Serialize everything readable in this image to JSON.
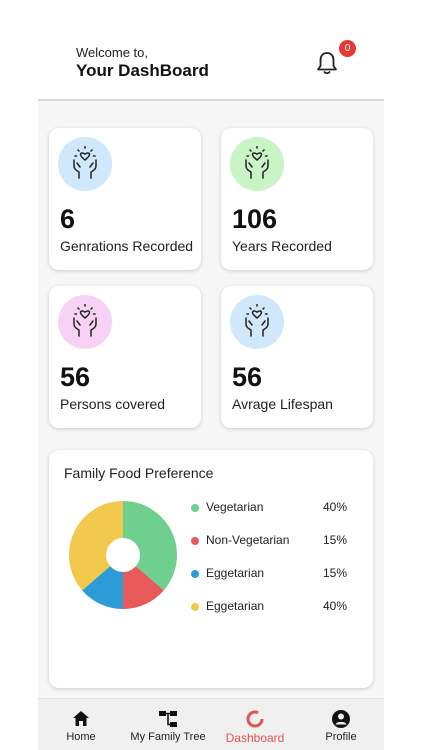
{
  "header": {
    "welcome": "Welcome to,",
    "title": "Your DashBoard",
    "notifications": {
      "icon": "bell-icon",
      "count": "0"
    }
  },
  "stats": [
    {
      "value": "6",
      "label": "Genrations Recorded",
      "icon": "hands-heart-icon",
      "color": "#cfe8fb"
    },
    {
      "value": "106",
      "label": "Years Recorded",
      "icon": "hands-heart-icon",
      "color": "#c9f5c6"
    },
    {
      "value": "56",
      "label": "Persons covered",
      "icon": "hands-heart-icon",
      "color": "#f8d2f5"
    },
    {
      "value": "56",
      "label": "Avrage Lifespan",
      "icon": "hands-heart-icon",
      "color": "#cfe8fb"
    }
  ],
  "food": {
    "title": "Family Food Preference",
    "legend": [
      {
        "label": "Vegetarian",
        "pct": "40%",
        "color": "#6fcf8f"
      },
      {
        "label": "Non-Vegetarian",
        "pct": "15%",
        "color": "#e85a5a"
      },
      {
        "label": "Eggetarian",
        "pct": "15%",
        "color": "#2d9bd8"
      },
      {
        "label": "Eggetarian",
        "pct": "40%",
        "color": "#f2c94c"
      }
    ]
  },
  "chart_data": {
    "type": "pie",
    "title": "Family Food Preference",
    "categories": [
      "Vegetarian",
      "Non-Vegetarian",
      "Eggetarian",
      "Eggetarian"
    ],
    "values": [
      40,
      15,
      15,
      40
    ],
    "colors": [
      "#6fcf8f",
      "#e85a5a",
      "#2d9bd8",
      "#f2c94c"
    ],
    "legend": "right"
  },
  "nav": [
    {
      "label": "Home",
      "icon": "home-icon",
      "active": false
    },
    {
      "label": "My Family Tree",
      "icon": "family-tree-icon",
      "active": false
    },
    {
      "label": "Dashboard",
      "icon": "dashboard-icon",
      "active": true
    },
    {
      "label": "Profile",
      "icon": "profile-icon",
      "active": false
    }
  ],
  "colors": {
    "accent": "#e0544f",
    "badge": "#e53935"
  }
}
